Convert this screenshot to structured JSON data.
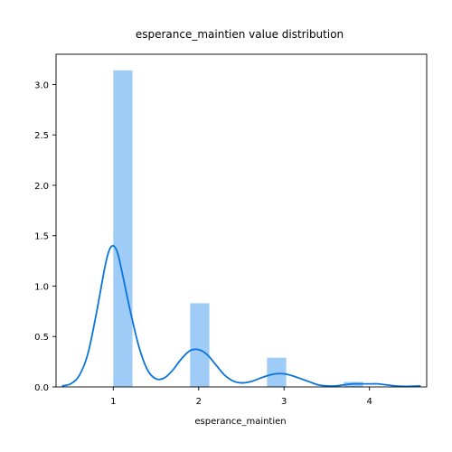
{
  "chart_data": {
    "type": "bar",
    "title": "esperance_maintien value distribution",
    "xlabel": "esperance_maintien",
    "ylabel": "",
    "xlim": [
      0.33,
      4.67
    ],
    "ylim": [
      0,
      3.3
    ],
    "x_ticks": [
      1,
      2,
      3,
      4
    ],
    "y_ticks": [
      0.0,
      0.5,
      1.0,
      1.5,
      2.0,
      2.5,
      3.0
    ],
    "x_tick_labels": [
      "1",
      "2",
      "3",
      "4"
    ],
    "y_tick_labels": [
      "0.0",
      "0.5",
      "1.0",
      "1.5",
      "2.0",
      "2.5",
      "3.0"
    ],
    "grid": false,
    "series": [
      {
        "type": "histogram",
        "color": "#9fcbf7",
        "bins": [
          {
            "x0": 1.0,
            "x1": 1.225,
            "value": 3.14
          },
          {
            "x0": 1.9,
            "x1": 2.125,
            "value": 0.83
          },
          {
            "x0": 2.8,
            "x1": 3.025,
            "value": 0.29
          },
          {
            "x0": 3.7,
            "x1": 3.925,
            "value": 0.05
          }
        ]
      },
      {
        "type": "line",
        "color": "#0a74da",
        "x": [
          0.4,
          0.5,
          0.6,
          0.7,
          0.8,
          0.9,
          0.95,
          1.0,
          1.05,
          1.1,
          1.2,
          1.3,
          1.4,
          1.5,
          1.6,
          1.7,
          1.8,
          1.9,
          2.0,
          2.1,
          2.2,
          2.3,
          2.4,
          2.5,
          2.6,
          2.7,
          2.8,
          2.9,
          3.0,
          3.1,
          3.2,
          3.3,
          3.4,
          3.5,
          3.6,
          3.7,
          3.8,
          3.9,
          4.0,
          4.1,
          4.2,
          4.3,
          4.4,
          4.6
        ],
        "y": [
          0.01,
          0.03,
          0.11,
          0.32,
          0.72,
          1.18,
          1.35,
          1.4,
          1.33,
          1.15,
          0.75,
          0.4,
          0.17,
          0.08,
          0.09,
          0.17,
          0.28,
          0.36,
          0.37,
          0.32,
          0.22,
          0.12,
          0.06,
          0.04,
          0.05,
          0.08,
          0.11,
          0.13,
          0.13,
          0.11,
          0.08,
          0.05,
          0.02,
          0.01,
          0.01,
          0.02,
          0.03,
          0.03,
          0.03,
          0.03,
          0.02,
          0.01,
          0.005,
          0.01
        ]
      }
    ]
  }
}
